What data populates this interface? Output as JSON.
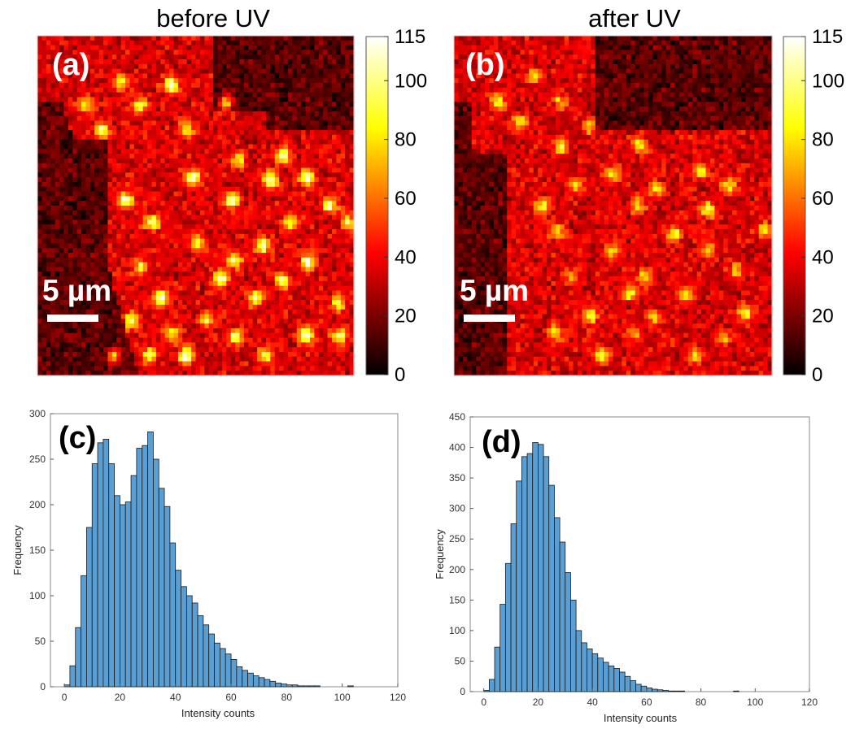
{
  "chart_data": [
    {
      "id": "a",
      "type": "heatmap",
      "title": "before UV",
      "panel_label": "(a)",
      "scale_bar_label": "5 µm",
      "colormap": "hot",
      "colorbar": {
        "range": [
          0,
          115
        ],
        "ticks": [
          0,
          20,
          40,
          60,
          80,
          100,
          115
        ]
      }
    },
    {
      "id": "b",
      "type": "heatmap",
      "title": "after UV",
      "panel_label": "(b)",
      "scale_bar_label": "5 µm",
      "colormap": "hot",
      "colorbar": {
        "range": [
          0,
          115
        ],
        "ticks": [
          0,
          20,
          40,
          60,
          80,
          100,
          115
        ]
      }
    },
    {
      "id": "c",
      "type": "bar",
      "panel_label": "(c)",
      "xlabel": "Intensity counts",
      "ylabel": "Frequency",
      "xlim": [
        -5,
        120
      ],
      "ylim": [
        0,
        300
      ],
      "xticks": [
        0,
        20,
        40,
        60,
        80,
        100,
        120
      ],
      "yticks": [
        0,
        50,
        100,
        150,
        200,
        250,
        300
      ],
      "bin_width": 2,
      "bin_start": 0,
      "values": [
        2,
        23,
        65,
        122,
        175,
        245,
        268,
        272,
        245,
        210,
        200,
        203,
        232,
        262,
        265,
        280,
        250,
        218,
        198,
        158,
        128,
        110,
        100,
        92,
        78,
        68,
        58,
        48,
        42,
        36,
        30,
        22,
        18,
        15,
        12,
        10,
        8,
        6,
        4,
        3,
        2,
        2,
        1,
        1,
        1,
        1,
        0,
        0,
        0,
        0,
        0,
        1
      ]
    },
    {
      "id": "d",
      "type": "bar",
      "panel_label": "(d)",
      "xlabel": "Intensity counts",
      "ylabel": "Frequency",
      "xlim": [
        -5,
        120
      ],
      "ylim": [
        0,
        450
      ],
      "xticks": [
        0,
        20,
        40,
        60,
        80,
        100,
        120
      ],
      "yticks": [
        0,
        50,
        100,
        150,
        200,
        250,
        300,
        350,
        400,
        450
      ],
      "bin_width": 2,
      "bin_start": 0,
      "values": [
        2,
        20,
        73,
        143,
        210,
        275,
        345,
        385,
        390,
        408,
        405,
        385,
        338,
        285,
        245,
        195,
        150,
        100,
        80,
        70,
        62,
        55,
        48,
        42,
        38,
        32,
        25,
        18,
        12,
        9,
        6,
        4,
        3,
        2,
        1,
        1,
        1,
        0,
        0,
        0,
        0,
        0,
        0,
        0,
        0,
        0,
        1
      ]
    }
  ]
}
